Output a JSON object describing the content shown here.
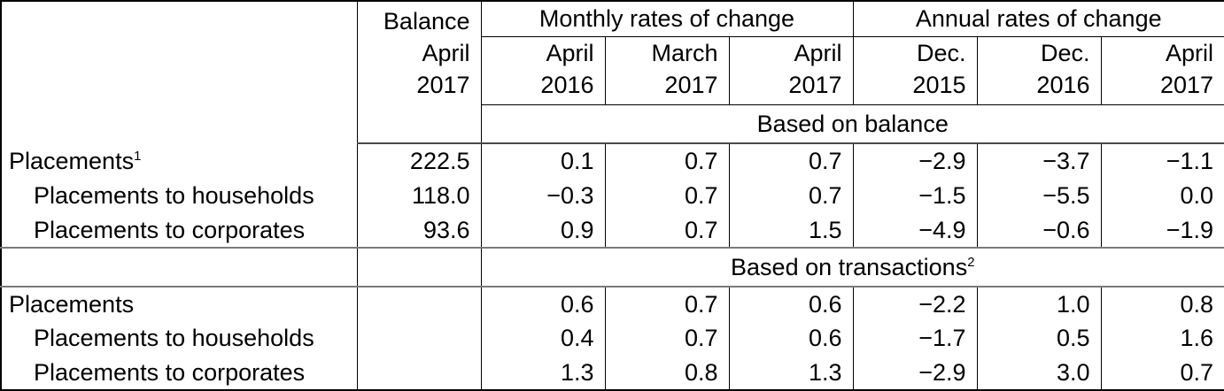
{
  "colors": {
    "background": "#ffffff",
    "text": "#000000",
    "grid_line": "#000000",
    "section_separator": "#7a7a7a"
  },
  "header": {
    "balance": {
      "line1": "Balance",
      "line2": "April",
      "line3": "2017"
    },
    "monthly_group": "Monthly rates of change",
    "annual_group": "Annual rates of change",
    "cols": [
      {
        "line1": "April",
        "line2": "2016"
      },
      {
        "line1": "March",
        "line2": "2017"
      },
      {
        "line1": "April",
        "line2": "2017"
      },
      {
        "line1": "Dec.",
        "line2": "2015"
      },
      {
        "line1": "Dec.",
        "line2": "2016"
      },
      {
        "line1": "April",
        "line2": "2017"
      }
    ]
  },
  "sections": [
    {
      "title": "Based on balance",
      "title_sup": "",
      "rows": [
        {
          "label": "Placements",
          "label_sup": "1",
          "balance": "222.5",
          "rates": [
            "0.1",
            "0.7",
            "0.7",
            "−2.9",
            "−3.7",
            "−1.1"
          ]
        },
        {
          "label": "Placements to households",
          "label_sup": "",
          "balance": "118.0",
          "rates": [
            "−0.3",
            "0.7",
            "0.7",
            "−1.5",
            "−5.5",
            "0.0"
          ]
        },
        {
          "label": "Placements to corporates",
          "label_sup": "",
          "balance": "93.6",
          "rates": [
            "0.9",
            "0.7",
            "1.5",
            "−4.9",
            "−0.6",
            "−1.9"
          ]
        }
      ]
    },
    {
      "title": "Based on transactions",
      "title_sup": "2",
      "rows": [
        {
          "label": "Placements",
          "label_sup": "",
          "balance": "",
          "rates": [
            "0.6",
            "0.7",
            "0.6",
            "−2.2",
            "1.0",
            "0.8"
          ]
        },
        {
          "label": "Placements to households",
          "label_sup": "",
          "balance": "",
          "rates": [
            "0.4",
            "0.7",
            "0.6",
            "−1.7",
            "0.5",
            "1.6"
          ]
        },
        {
          "label": "Placements to corporates",
          "label_sup": "",
          "balance": "",
          "rates": [
            "1.3",
            "0.8",
            "1.3",
            "−2.9",
            "3.0",
            "0.7"
          ]
        }
      ]
    }
  ]
}
